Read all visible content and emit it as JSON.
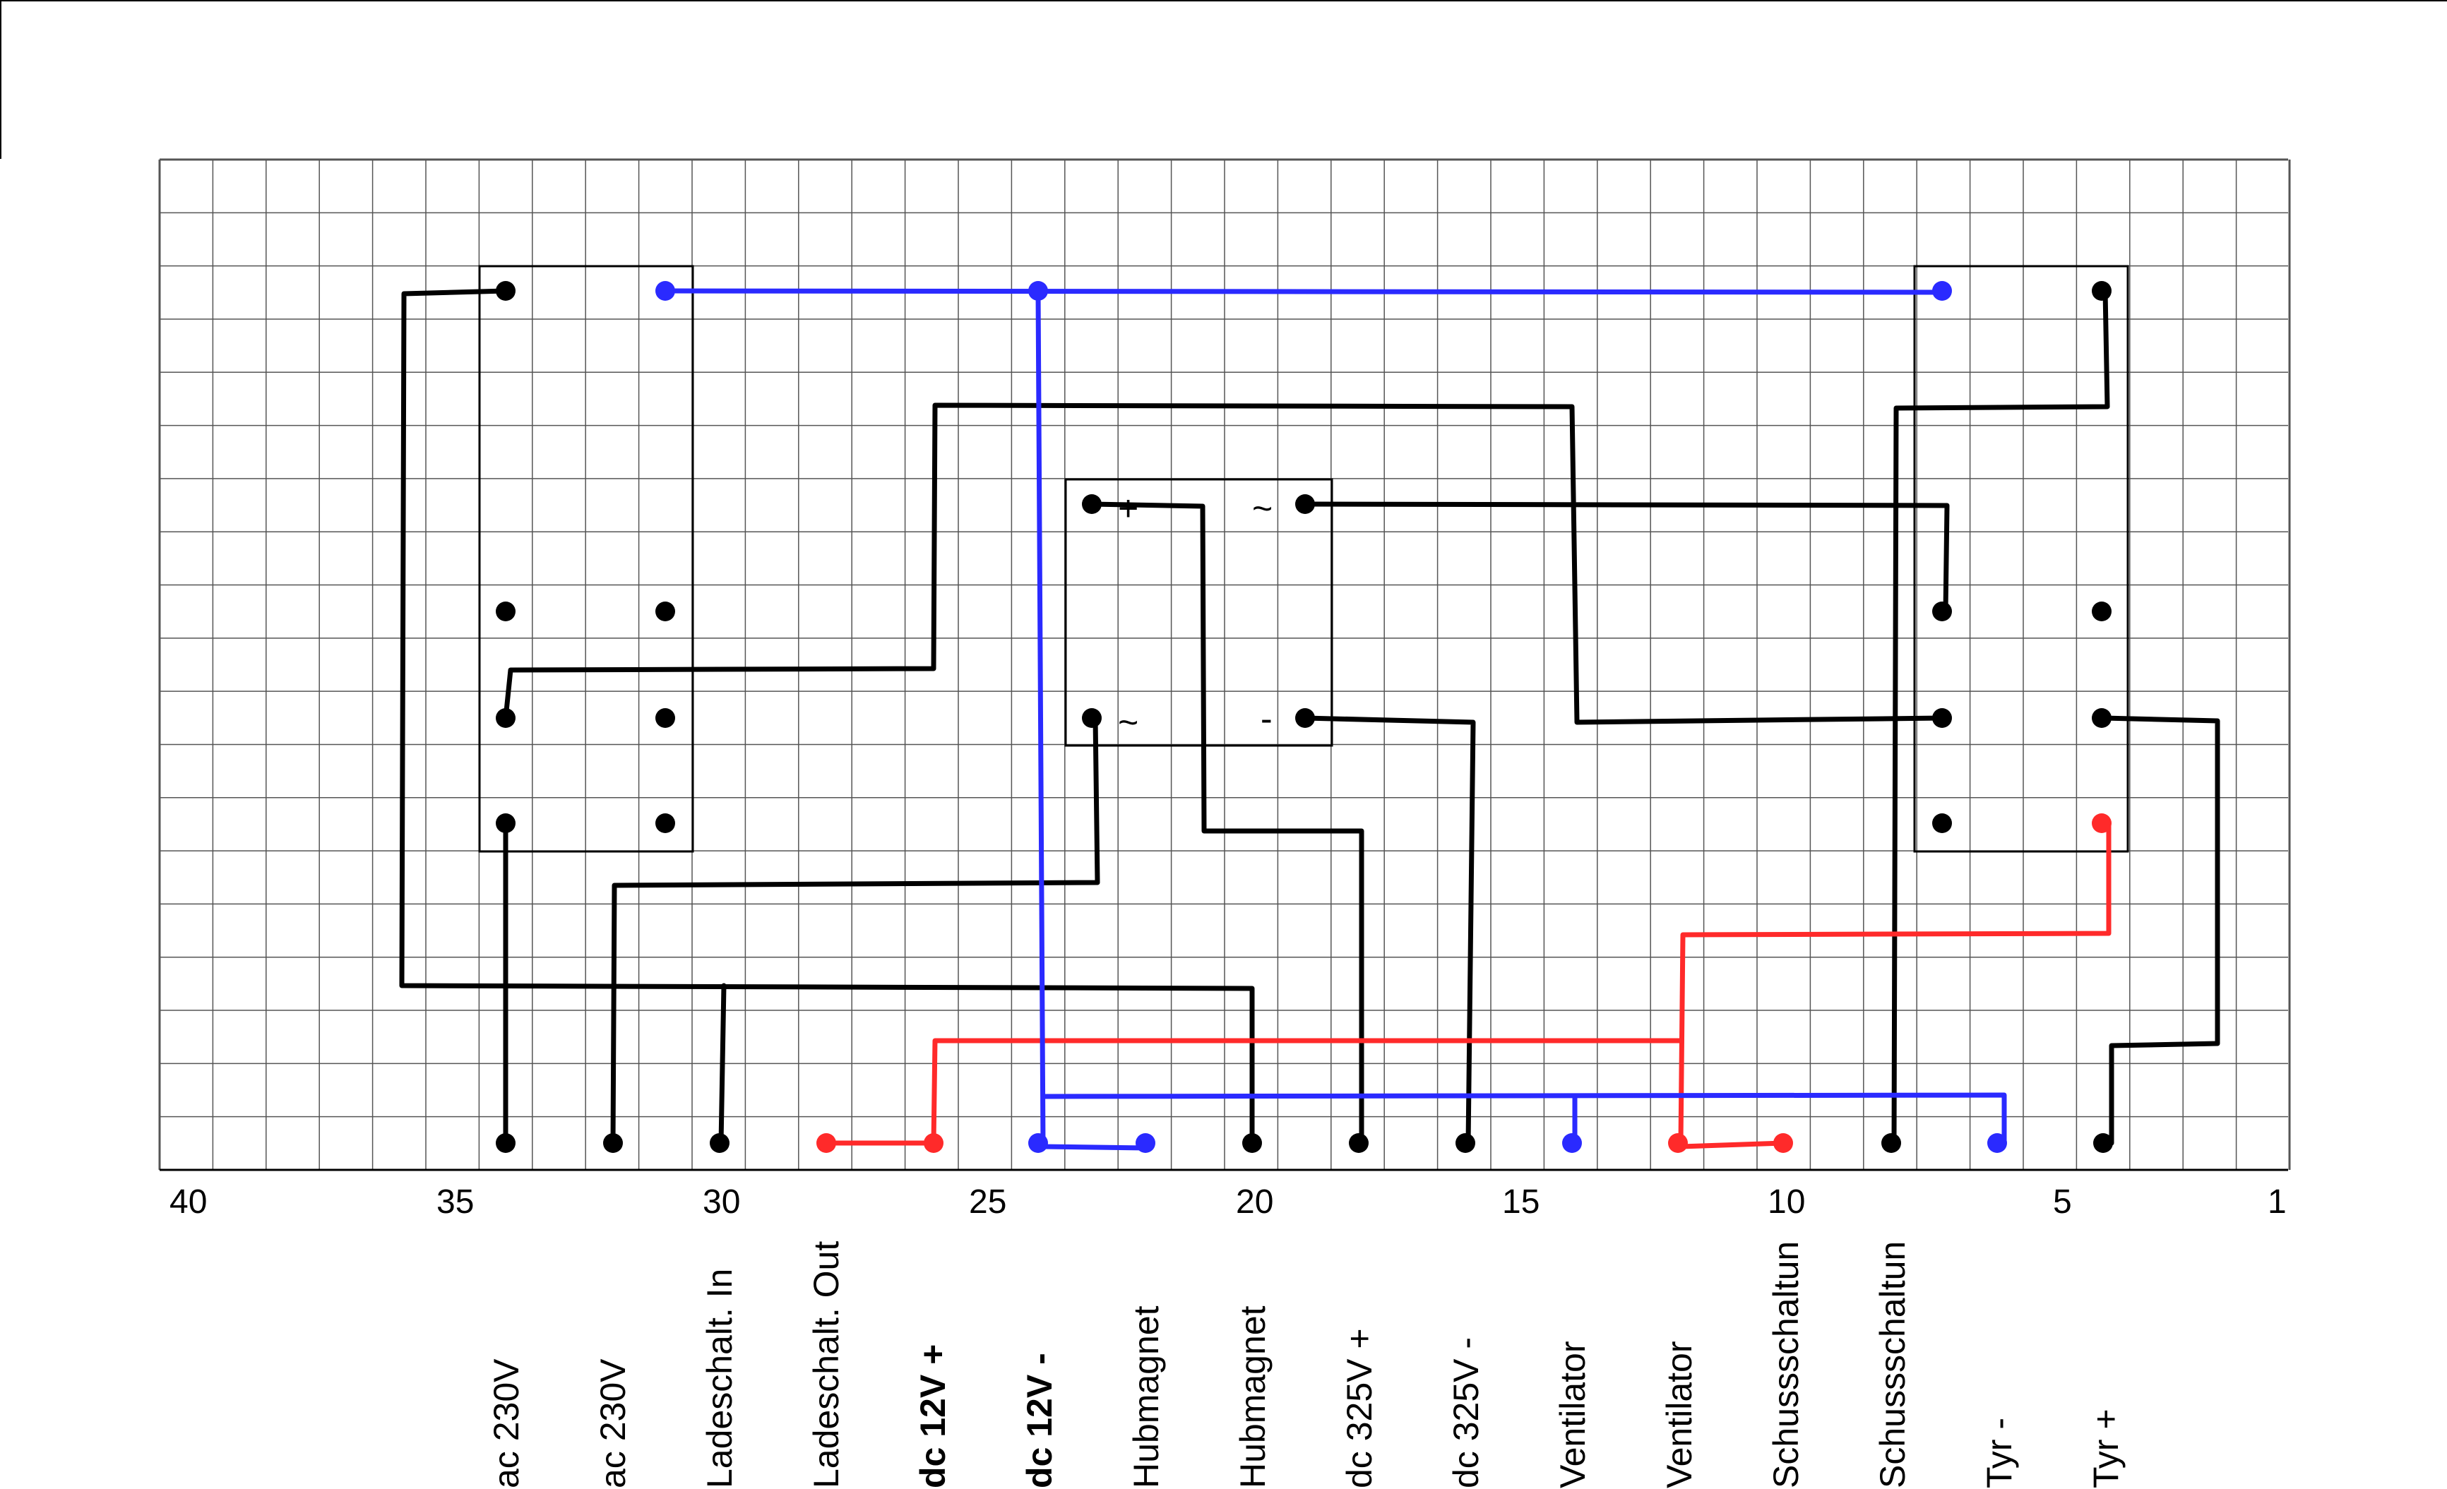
{
  "axis": {
    "ticks": [
      "40",
      "35",
      "30",
      "25",
      "20",
      "15",
      "10",
      "5",
      "1"
    ]
  },
  "components": {
    "rectifier_symbols": {
      "plus": "+",
      "tilde_top": "~",
      "tilde_bottom": "~",
      "minus": "-"
    }
  },
  "connectors": [
    {
      "label": "ac 230V",
      "color": "#000000"
    },
    {
      "label": "ac 230V",
      "color": "#000000"
    },
    {
      "label": "Ladeschalt. In",
      "color": "#000000"
    },
    {
      "label": "Ladeschalt. Out",
      "color": "#000000"
    },
    {
      "label": "dc 12V +",
      "color": "#ff2a2a"
    },
    {
      "label": "dc 12V -",
      "color": "#2a2aff"
    },
    {
      "label": "Hubmagnet",
      "color": "#000000"
    },
    {
      "label": "Hubmagnet",
      "color": "#000000"
    },
    {
      "label": "dc 325V +",
      "color": "#000000"
    },
    {
      "label": "dc 325V -",
      "color": "#000000"
    },
    {
      "label": "Ventilator",
      "color": "#000000"
    },
    {
      "label": "Ventilator",
      "color": "#000000"
    },
    {
      "label": "Schussschaltun",
      "color": "#000000"
    },
    {
      "label": "Schussschaltun",
      "color": "#000000"
    },
    {
      "label": "Tyr -",
      "color": "#000000"
    },
    {
      "label": "Tyr +",
      "color": "#000000"
    }
  ],
  "colors": {
    "black_wire": "#000000",
    "red_wire": "#ff2a2a",
    "blue_wire": "#2a2aff",
    "grid": "#555555"
  }
}
